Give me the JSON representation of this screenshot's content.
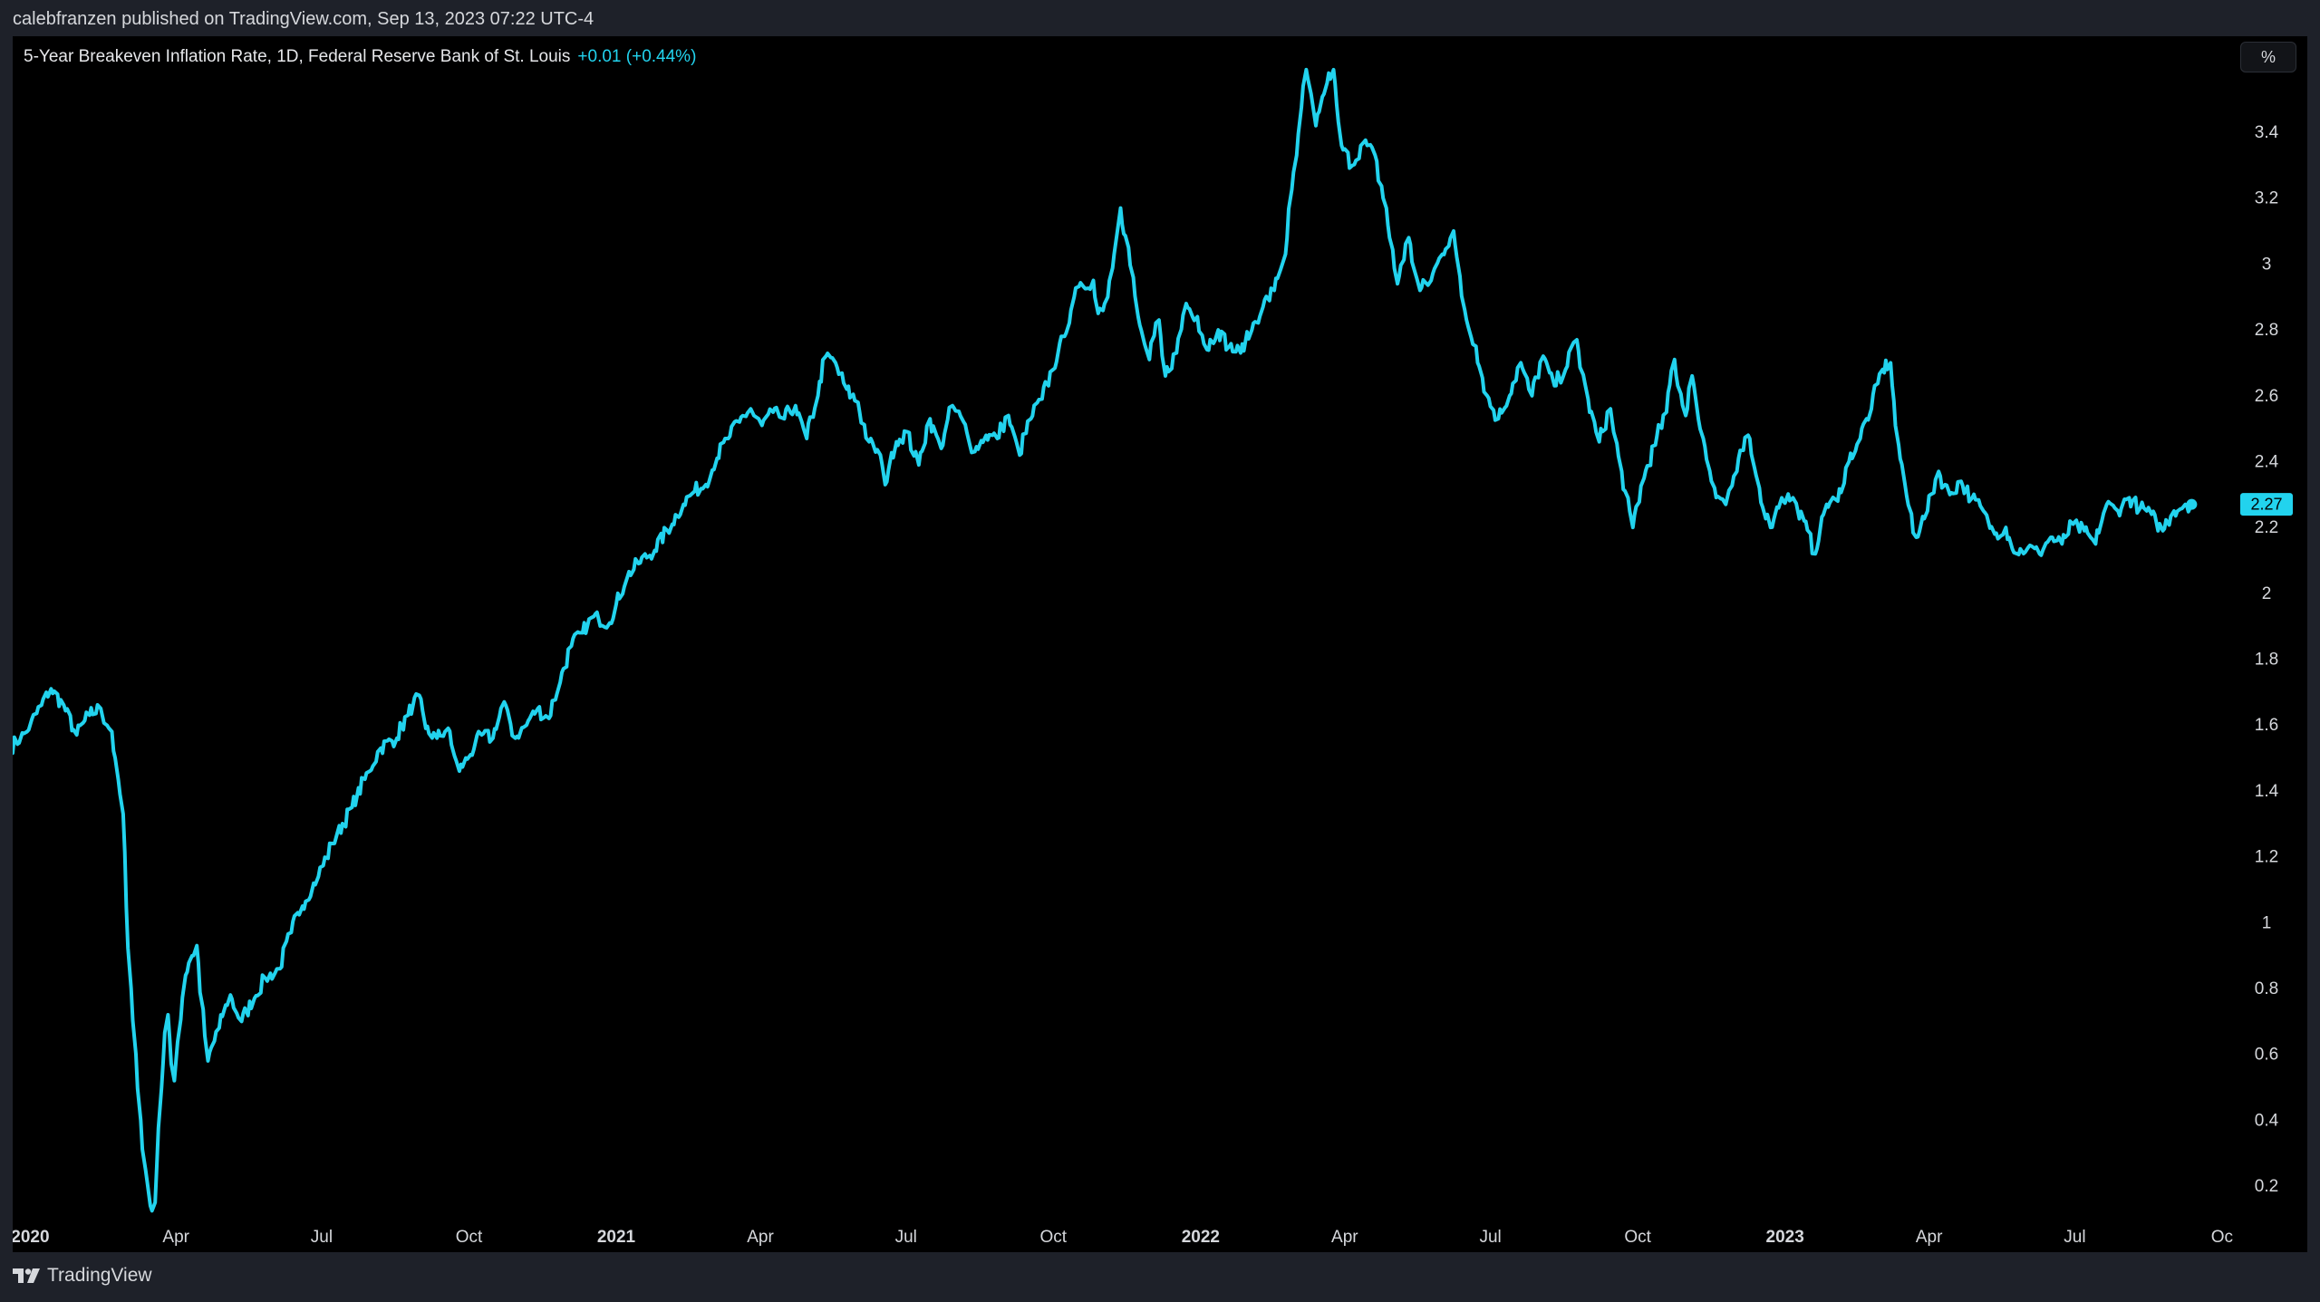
{
  "header": {
    "attribution": "calebfranzen published on TradingView.com, Sep 13, 2023 07:22 UTC-4"
  },
  "legend": {
    "title": "5-Year Breakeven Inflation Rate, 1D, Federal Reserve Bank of St. Louis",
    "change": "+0.01 (+0.44%)"
  },
  "unit_button": {
    "label": "%"
  },
  "footer": {
    "logo_text": "TradingView",
    "logo_icon": "tradingview-logo-icon"
  },
  "colors": {
    "background": "#000000",
    "line": "#22d3ee",
    "axis_text": "#d6d8dc",
    "frame": "#1e2129"
  },
  "chart_data": {
    "type": "line",
    "title": "5-Year Breakeven Inflation Rate, 1D, Federal Reserve Bank of St. Louis",
    "ylabel": "%",
    "ylim": [
      0.1,
      3.6
    ],
    "xlim": [
      "2019-12-21",
      "2023-10-05"
    ],
    "y_ticks": [
      "3.4",
      "3.2",
      "3",
      "2.8",
      "2.6",
      "2.4",
      "2.2",
      "2",
      "1.8",
      "1.6",
      "1.4",
      "1.2",
      "1",
      "0.8",
      "0.6",
      "0.4",
      "0.2"
    ],
    "x_ticks": [
      {
        "date": "2020-01-01",
        "label": "2020",
        "bold": true
      },
      {
        "date": "2020-04-01",
        "label": "Apr",
        "bold": false
      },
      {
        "date": "2020-07-01",
        "label": "Jul",
        "bold": false
      },
      {
        "date": "2020-10-01",
        "label": "Oct",
        "bold": false
      },
      {
        "date": "2021-01-01",
        "label": "2021",
        "bold": true
      },
      {
        "date": "2021-04-01",
        "label": "Apr",
        "bold": false
      },
      {
        "date": "2021-07-01",
        "label": "Jul",
        "bold": false
      },
      {
        "date": "2021-10-01",
        "label": "Oct",
        "bold": false
      },
      {
        "date": "2022-01-01",
        "label": "2022",
        "bold": true
      },
      {
        "date": "2022-04-01",
        "label": "Apr",
        "bold": false
      },
      {
        "date": "2022-07-01",
        "label": "Jul",
        "bold": false
      },
      {
        "date": "2022-10-01",
        "label": "Oct",
        "bold": false
      },
      {
        "date": "2023-01-01",
        "label": "2023",
        "bold": true
      },
      {
        "date": "2023-04-01",
        "label": "Apr",
        "bold": false
      },
      {
        "date": "2023-07-01",
        "label": "Jul",
        "bold": false
      },
      {
        "date": "2023-10-01",
        "label": "Oc",
        "bold": false
      }
    ],
    "last_value": "2.27",
    "grid": false,
    "series": [
      {
        "color": "#22d3ee",
        "points": [
          [
            "2019-12-20",
            1.53
          ],
          [
            "2019-12-30",
            1.58
          ],
          [
            "2020-01-08",
            1.66
          ],
          [
            "2020-01-14",
            1.71
          ],
          [
            "2020-01-22",
            1.66
          ],
          [
            "2020-01-30",
            1.57
          ],
          [
            "2020-02-07",
            1.63
          ],
          [
            "2020-02-14",
            1.65
          ],
          [
            "2020-02-21",
            1.58
          ],
          [
            "2020-02-28",
            1.33
          ],
          [
            "2020-03-04",
            0.8
          ],
          [
            "2020-03-10",
            0.4
          ],
          [
            "2020-03-13",
            0.25
          ],
          [
            "2020-03-16",
            0.14
          ],
          [
            "2020-03-19",
            0.15
          ],
          [
            "2020-03-23",
            0.5
          ],
          [
            "2020-03-27",
            0.72
          ],
          [
            "2020-03-31",
            0.52
          ],
          [
            "2020-04-07",
            0.84
          ],
          [
            "2020-04-14",
            0.93
          ],
          [
            "2020-04-21",
            0.58
          ],
          [
            "2020-04-28",
            0.68
          ],
          [
            "2020-05-05",
            0.78
          ],
          [
            "2020-05-12",
            0.7
          ],
          [
            "2020-05-20",
            0.77
          ],
          [
            "2020-05-27",
            0.83
          ],
          [
            "2020-06-05",
            0.86
          ],
          [
            "2020-06-12",
            0.97
          ],
          [
            "2020-06-19",
            1.05
          ],
          [
            "2020-06-29",
            1.14
          ],
          [
            "2020-07-08",
            1.24
          ],
          [
            "2020-07-20",
            1.35
          ],
          [
            "2020-07-31",
            1.46
          ],
          [
            "2020-08-07",
            1.53
          ],
          [
            "2020-08-17",
            1.56
          ],
          [
            "2020-08-24",
            1.63
          ],
          [
            "2020-08-31",
            1.69
          ],
          [
            "2020-09-04",
            1.59
          ],
          [
            "2020-09-11",
            1.56
          ],
          [
            "2020-09-18",
            1.59
          ],
          [
            "2020-09-25",
            1.46
          ],
          [
            "2020-10-02",
            1.51
          ],
          [
            "2020-10-09",
            1.57
          ],
          [
            "2020-10-16",
            1.56
          ],
          [
            "2020-10-23",
            1.67
          ],
          [
            "2020-10-30",
            1.56
          ],
          [
            "2020-11-06",
            1.6
          ],
          [
            "2020-11-13",
            1.65
          ],
          [
            "2020-11-20",
            1.62
          ],
          [
            "2020-11-27",
            1.73
          ],
          [
            "2020-12-04",
            1.84
          ],
          [
            "2020-12-11",
            1.88
          ],
          [
            "2020-12-18",
            1.93
          ],
          [
            "2020-12-28",
            1.91
          ],
          [
            "2021-01-08",
            2.05
          ],
          [
            "2021-01-15",
            2.09
          ],
          [
            "2021-01-25",
            2.13
          ],
          [
            "2021-02-05",
            2.21
          ],
          [
            "2021-02-12",
            2.27
          ],
          [
            "2021-02-19",
            2.31
          ],
          [
            "2021-02-26",
            2.33
          ],
          [
            "2021-03-05",
            2.41
          ],
          [
            "2021-03-12",
            2.47
          ],
          [
            "2021-03-19",
            2.52
          ],
          [
            "2021-03-26",
            2.56
          ],
          [
            "2021-04-02",
            2.51
          ],
          [
            "2021-04-09",
            2.55
          ],
          [
            "2021-04-16",
            2.53
          ],
          [
            "2021-04-23",
            2.57
          ],
          [
            "2021-04-30",
            2.47
          ],
          [
            "2021-05-07",
            2.6
          ],
          [
            "2021-05-12",
            2.72
          ],
          [
            "2021-05-18",
            2.7
          ],
          [
            "2021-05-25",
            2.62
          ],
          [
            "2021-06-01",
            2.58
          ],
          [
            "2021-06-08",
            2.46
          ],
          [
            "2021-06-15",
            2.42
          ],
          [
            "2021-06-18",
            2.33
          ],
          [
            "2021-06-25",
            2.46
          ],
          [
            "2021-07-02",
            2.49
          ],
          [
            "2021-07-09",
            2.39
          ],
          [
            "2021-07-16",
            2.53
          ],
          [
            "2021-07-23",
            2.44
          ],
          [
            "2021-07-30",
            2.57
          ],
          [
            "2021-08-06",
            2.52
          ],
          [
            "2021-08-13",
            2.43
          ],
          [
            "2021-08-20",
            2.48
          ],
          [
            "2021-08-27",
            2.47
          ],
          [
            "2021-09-03",
            2.54
          ],
          [
            "2021-09-10",
            2.42
          ],
          [
            "2021-09-17",
            2.53
          ],
          [
            "2021-09-24",
            2.59
          ],
          [
            "2021-10-01",
            2.68
          ],
          [
            "2021-10-08",
            2.78
          ],
          [
            "2021-10-14",
            2.9
          ],
          [
            "2021-10-20",
            2.93
          ],
          [
            "2021-10-26",
            2.95
          ],
          [
            "2021-10-29",
            2.85
          ],
          [
            "2021-11-04",
            2.9
          ],
          [
            "2021-11-10",
            3.1
          ],
          [
            "2021-11-12",
            3.17
          ],
          [
            "2021-11-17",
            3.05
          ],
          [
            "2021-11-23",
            2.84
          ],
          [
            "2021-11-30",
            2.71
          ],
          [
            "2021-12-06",
            2.83
          ],
          [
            "2021-12-10",
            2.66
          ],
          [
            "2021-12-17",
            2.73
          ],
          [
            "2021-12-23",
            2.88
          ],
          [
            "2021-12-30",
            2.84
          ],
          [
            "2022-01-05",
            2.74
          ],
          [
            "2022-01-12",
            2.8
          ],
          [
            "2022-01-19",
            2.75
          ],
          [
            "2022-01-26",
            2.73
          ],
          [
            "2022-02-02",
            2.8
          ],
          [
            "2022-02-09",
            2.87
          ],
          [
            "2022-02-16",
            2.92
          ],
          [
            "2022-02-23",
            3.03
          ],
          [
            "2022-03-02",
            3.33
          ],
          [
            "2022-03-08",
            3.59
          ],
          [
            "2022-03-14",
            3.42
          ],
          [
            "2022-03-21",
            3.55
          ],
          [
            "2022-03-25",
            3.59
          ],
          [
            "2022-03-30",
            3.36
          ],
          [
            "2022-04-06",
            3.3
          ],
          [
            "2022-04-13",
            3.37
          ],
          [
            "2022-04-20",
            3.33
          ],
          [
            "2022-04-27",
            3.17
          ],
          [
            "2022-05-04",
            2.94
          ],
          [
            "2022-05-11",
            3.08
          ],
          [
            "2022-05-18",
            2.92
          ],
          [
            "2022-05-25",
            2.95
          ],
          [
            "2022-06-01",
            3.03
          ],
          [
            "2022-06-08",
            3.1
          ],
          [
            "2022-06-15",
            2.86
          ],
          [
            "2022-06-22",
            2.75
          ],
          [
            "2022-06-29",
            2.6
          ],
          [
            "2022-07-06",
            2.53
          ],
          [
            "2022-07-13",
            2.6
          ],
          [
            "2022-07-20",
            2.7
          ],
          [
            "2022-07-27",
            2.6
          ],
          [
            "2022-08-03",
            2.72
          ],
          [
            "2022-08-10",
            2.63
          ],
          [
            "2022-08-17",
            2.68
          ],
          [
            "2022-08-24",
            2.77
          ],
          [
            "2022-08-31",
            2.59
          ],
          [
            "2022-09-07",
            2.46
          ],
          [
            "2022-09-14",
            2.56
          ],
          [
            "2022-09-21",
            2.37
          ],
          [
            "2022-09-28",
            2.2
          ],
          [
            "2022-10-05",
            2.35
          ],
          [
            "2022-10-12",
            2.45
          ],
          [
            "2022-10-19",
            2.55
          ],
          [
            "2022-10-24",
            2.71
          ],
          [
            "2022-10-31",
            2.54
          ],
          [
            "2022-11-04",
            2.66
          ],
          [
            "2022-11-11",
            2.47
          ],
          [
            "2022-11-18",
            2.32
          ],
          [
            "2022-11-25",
            2.27
          ],
          [
            "2022-12-02",
            2.37
          ],
          [
            "2022-12-09",
            2.48
          ],
          [
            "2022-12-16",
            2.32
          ],
          [
            "2022-12-23",
            2.2
          ],
          [
            "2022-12-30",
            2.29
          ],
          [
            "2023-01-06",
            2.29
          ],
          [
            "2023-01-13",
            2.22
          ],
          [
            "2023-01-20",
            2.12
          ],
          [
            "2023-01-27",
            2.27
          ],
          [
            "2023-02-03",
            2.28
          ],
          [
            "2023-02-10",
            2.4
          ],
          [
            "2023-02-17",
            2.47
          ],
          [
            "2023-02-24",
            2.56
          ],
          [
            "2023-03-03",
            2.68
          ],
          [
            "2023-03-08",
            2.7
          ],
          [
            "2023-03-13",
            2.45
          ],
          [
            "2023-03-17",
            2.33
          ],
          [
            "2023-03-24",
            2.17
          ],
          [
            "2023-03-31",
            2.25
          ],
          [
            "2023-04-07",
            2.37
          ],
          [
            "2023-04-14",
            2.3
          ],
          [
            "2023-04-21",
            2.34
          ],
          [
            "2023-04-28",
            2.29
          ],
          [
            "2023-05-05",
            2.25
          ],
          [
            "2023-05-12",
            2.18
          ],
          [
            "2023-05-19",
            2.2
          ],
          [
            "2023-05-26",
            2.12
          ],
          [
            "2023-06-02",
            2.14
          ],
          [
            "2023-06-09",
            2.12
          ],
          [
            "2023-06-16",
            2.17
          ],
          [
            "2023-06-23",
            2.15
          ],
          [
            "2023-06-30",
            2.21
          ],
          [
            "2023-07-07",
            2.19
          ],
          [
            "2023-07-14",
            2.15
          ],
          [
            "2023-07-21",
            2.27
          ],
          [
            "2023-07-28",
            2.25
          ],
          [
            "2023-08-04",
            2.29
          ],
          [
            "2023-08-11",
            2.26
          ],
          [
            "2023-08-18",
            2.24
          ],
          [
            "2023-08-25",
            2.19
          ],
          [
            "2023-09-01",
            2.25
          ],
          [
            "2023-09-08",
            2.27
          ],
          [
            "2023-09-12",
            2.27
          ]
        ]
      }
    ]
  }
}
